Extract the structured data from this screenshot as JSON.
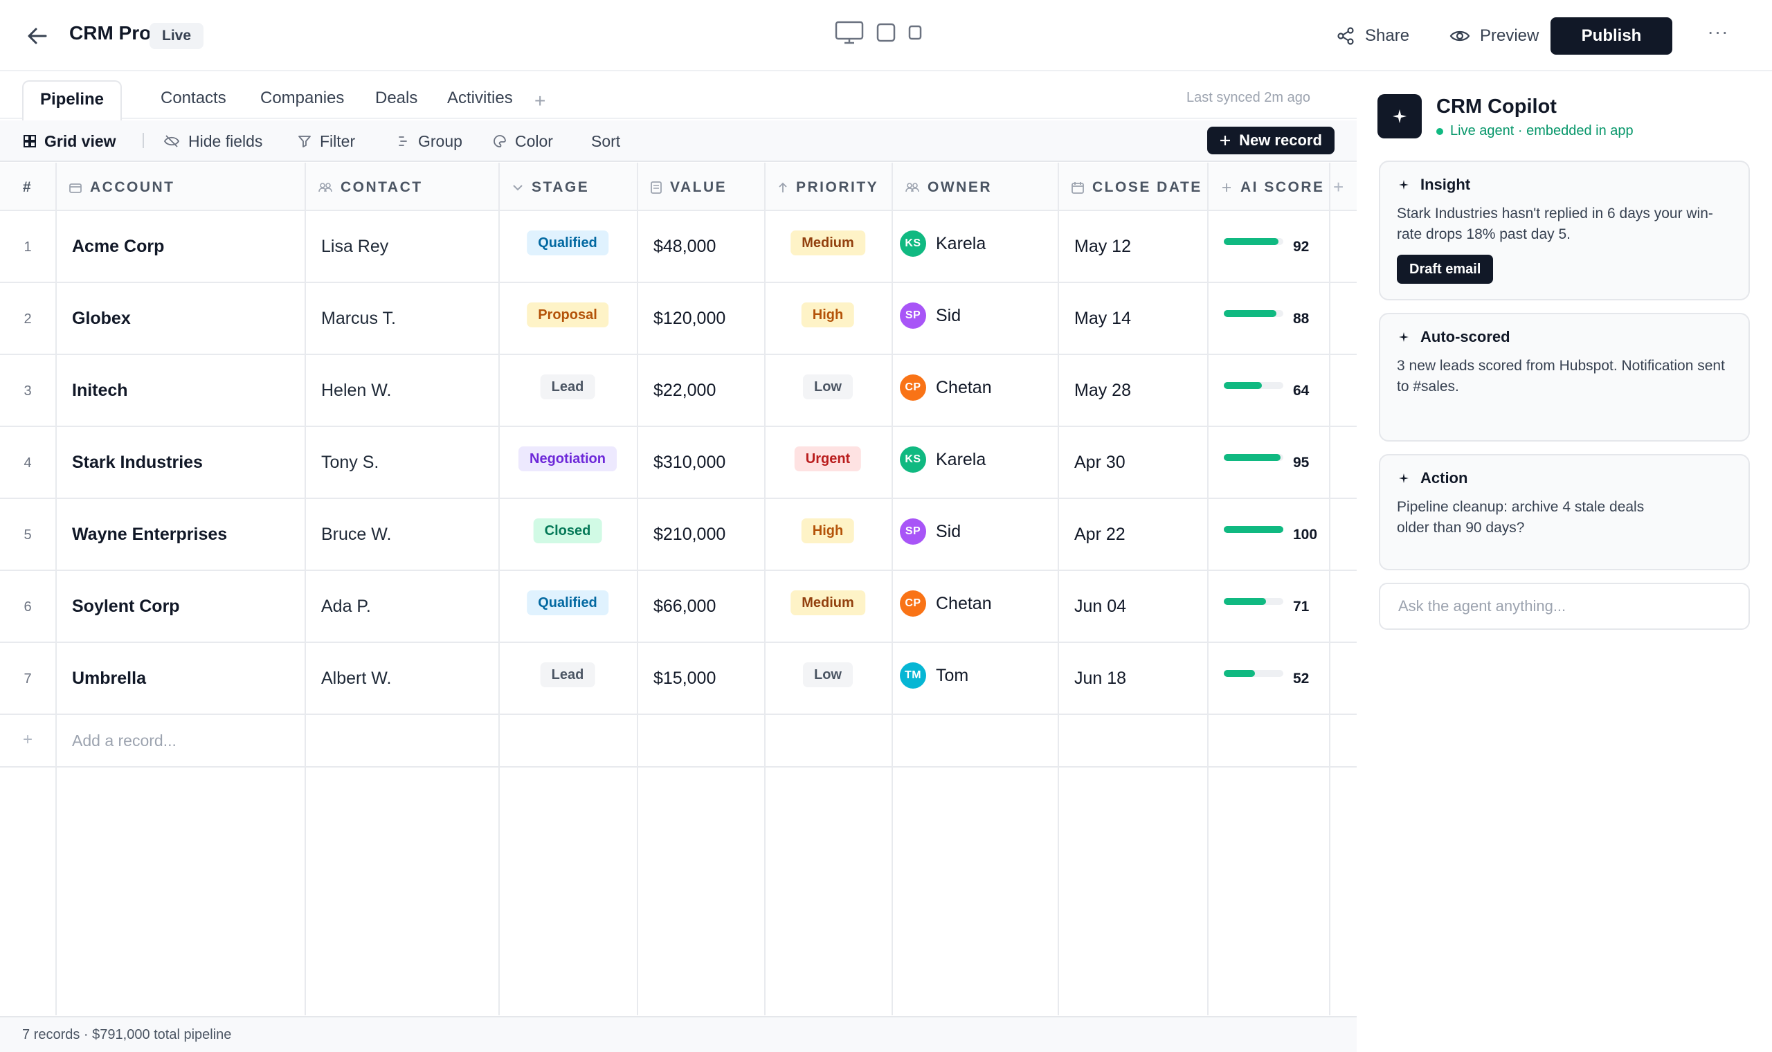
{
  "header": {
    "title": "CRM Pro",
    "status_badge": "Live",
    "share_label": "Share",
    "preview_label": "Preview",
    "publish_label": "Publish",
    "more_label": "···"
  },
  "tabs": [
    {
      "label": "Pipeline",
      "active": true
    },
    {
      "label": "Contacts",
      "active": false
    },
    {
      "label": "Companies",
      "active": false
    },
    {
      "label": "Deals",
      "active": false
    },
    {
      "label": "Activities",
      "active": false
    }
  ],
  "tab_add": "+",
  "synced_text": "Last synced 2m ago",
  "toolbar": {
    "view_label": "Grid view",
    "hide_fields": "Hide fields",
    "filter": "Filter",
    "group": "Group",
    "color": "Color",
    "sort": "Sort",
    "new_record": "New record"
  },
  "table": {
    "columns": [
      {
        "key": "num",
        "label": "#"
      },
      {
        "key": "account",
        "label": "ACCOUNT",
        "icon": "building-icon"
      },
      {
        "key": "contact",
        "label": "CONTACT",
        "icon": "people-icon"
      },
      {
        "key": "stage",
        "label": "STAGE",
        "icon": "chevron-down-icon"
      },
      {
        "key": "value",
        "label": "VALUE",
        "icon": "document-icon"
      },
      {
        "key": "priority",
        "label": "PRIORITY",
        "icon": "arrow-up-icon"
      },
      {
        "key": "owner",
        "label": "OWNER",
        "icon": "people-icon"
      },
      {
        "key": "close_date",
        "label": "CLOSE DATE",
        "icon": "calendar-icon"
      },
      {
        "key": "ai_score",
        "label": "AI SCORE",
        "icon": "sparkle-icon"
      }
    ],
    "rows": [
      {
        "num": "1",
        "account": "Acme Corp",
        "contact": "Lisa Rey",
        "stage": "Qualified",
        "value": "$48,000",
        "priority": "Medium",
        "owner_initials": "KS",
        "owner": "Karela",
        "close_date": "May 12",
        "ai_score": "92",
        "ai_score_value": 92
      },
      {
        "num": "2",
        "account": "Globex",
        "contact": "Marcus T.",
        "stage": "Proposal",
        "value": "$120,000",
        "priority": "High",
        "owner_initials": "SP",
        "owner": "Sid",
        "close_date": "May 14",
        "ai_score": "88",
        "ai_score_value": 88
      },
      {
        "num": "3",
        "account": "Initech",
        "contact": "Helen W.",
        "stage": "Lead",
        "value": "$22,000",
        "priority": "Low",
        "owner_initials": "CP",
        "owner": "Chetan",
        "close_date": "May 28",
        "ai_score": "64",
        "ai_score_value": 64
      },
      {
        "num": "4",
        "account": "Stark Industries",
        "contact": "Tony S.",
        "stage": "Negotiation",
        "value": "$310,000",
        "priority": "Urgent",
        "owner_initials": "KS",
        "owner": "Karela",
        "close_date": "Apr 30",
        "ai_score": "95",
        "ai_score_value": 95
      },
      {
        "num": "5",
        "account": "Wayne Enterprises",
        "contact": "Bruce W.",
        "stage": "Closed",
        "value": "$210,000",
        "priority": "High",
        "owner_initials": "SP",
        "owner": "Sid",
        "close_date": "Apr 22",
        "ai_score": "100",
        "ai_score_value": 100
      },
      {
        "num": "6",
        "account": "Soylent Corp",
        "contact": "Ada P.",
        "stage": "Qualified",
        "value": "$66,000",
        "priority": "Medium",
        "owner_initials": "CP",
        "owner": "Chetan",
        "close_date": "Jun 04",
        "ai_score": "71",
        "ai_score_value": 71
      },
      {
        "num": "7",
        "account": "Umbrella",
        "contact": "Albert W.",
        "stage": "Lead",
        "value": "$15,000",
        "priority": "Low",
        "owner_initials": "TM",
        "owner": "Tom",
        "close_date": "Jun 18",
        "ai_score": "52",
        "ai_score_value": 52
      }
    ],
    "add_record": "Add a record...",
    "add_plus": "+",
    "add_column": "+"
  },
  "colors": {
    "stage": {
      "Qualified": {
        "bg": "#e0f2fe",
        "fg": "#0369a1"
      },
      "Proposal": {
        "bg": "#fef3c7",
        "fg": "#b45309"
      },
      "Lead": {
        "bg": "#f3f4f6",
        "fg": "#4b5563"
      },
      "Negotiation": {
        "bg": "#ede9fe",
        "fg": "#6d28d9"
      },
      "Closed": {
        "bg": "#d1fae5",
        "fg": "#047857"
      }
    },
    "priority": {
      "Medium": {
        "bg": "#fef3c7",
        "fg": "#92400e"
      },
      "High": {
        "bg": "#fef3c7",
        "fg": "#b45309"
      },
      "Low": {
        "bg": "#f3f4f6",
        "fg": "#4b5563"
      },
      "Urgent": {
        "bg": "#fee2e2",
        "fg": "#b91c1c"
      }
    },
    "owners": {
      "KS": "#10b981",
      "SP": "#a855f7",
      "CP": "#f97316",
      "TM": "#06b6d4"
    },
    "score_bar": "#10b981"
  },
  "footer": {
    "summary": "7 records · $791,000 total pipeline"
  },
  "copilot": {
    "title": "CRM Copilot",
    "status": "Live agent · embedded in app",
    "cards": [
      {
        "title": "Insight",
        "body": "Stark Industries hasn't replied in 6 days your win-rate drops 18% past day 5.",
        "button": "Draft email"
      },
      {
        "title": "Auto-scored",
        "body": "3 new leads scored from Hubspot. Notification sent to #sales."
      },
      {
        "title": "Action",
        "body": "Pipeline cleanup: archive 4 stale deals older than 90 days?"
      }
    ],
    "ask_placeholder": "Ask the agent anything..."
  }
}
